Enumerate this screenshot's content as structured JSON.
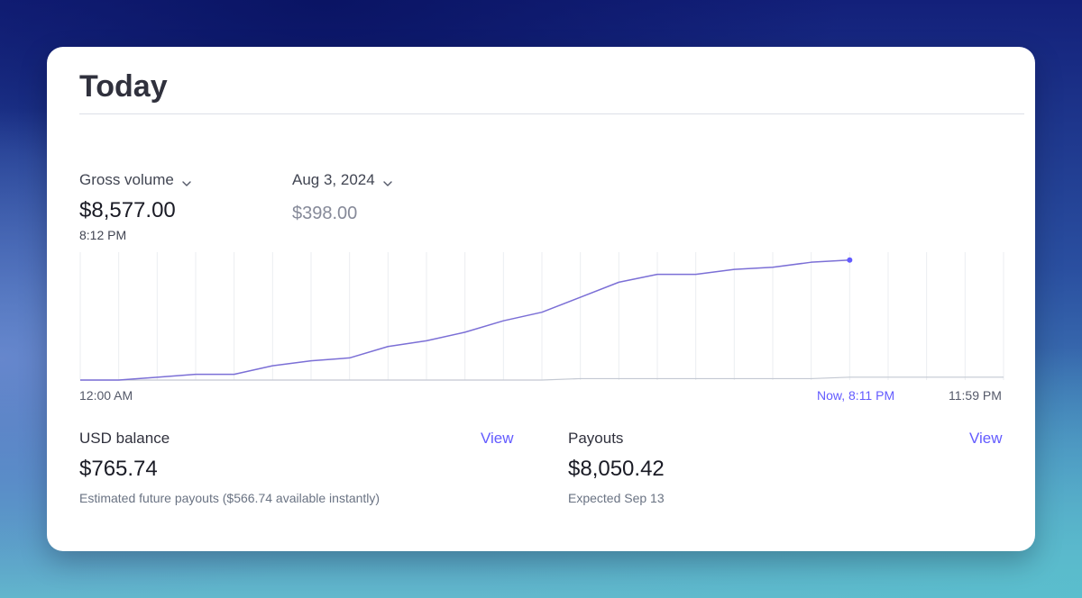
{
  "card": {
    "title": "Today"
  },
  "gross": {
    "metric_label": "Gross volume",
    "value": "$8,577.00",
    "time": "8:12 PM"
  },
  "compare": {
    "date_label": "Aug 3, 2024",
    "value": "$398.00"
  },
  "chart_data": {
    "type": "line",
    "x_start_label": "12:00 AM",
    "now_label": "Now, 8:11 PM",
    "x_end_label": "11:59 PM",
    "hours": [
      0,
      1,
      2,
      3,
      4,
      5,
      6,
      7,
      8,
      9,
      10,
      11,
      12,
      13,
      14,
      15,
      16,
      17,
      18,
      19,
      20,
      21,
      22,
      23,
      24
    ],
    "series": [
      {
        "color": "#7b6fd6",
        "values": [
          0,
          0,
          200,
          400,
          400,
          1000,
          1350,
          1550,
          2350,
          2750,
          3350,
          4150,
          4750,
          5800,
          6850,
          7400,
          7400,
          7750,
          7900,
          8250,
          8400
        ]
      },
      {
        "color": "#c3c8d2",
        "values": [
          0,
          0,
          0,
          0,
          0,
          0,
          0,
          0,
          0,
          0,
          0,
          0,
          0,
          100,
          100,
          100,
          100,
          100,
          100,
          100,
          200,
          200,
          200,
          200,
          200
        ]
      }
    ],
    "ylim": [
      0,
      8577
    ],
    "grid": "vertical"
  },
  "balance": {
    "label": "USD balance",
    "view_label": "View",
    "amount": "$765.74",
    "note": "Estimated future payouts ($566.74 available instantly)"
  },
  "payouts": {
    "label": "Payouts",
    "view_label": "View",
    "amount": "$8,050.42",
    "note": "Expected Sep 13"
  }
}
